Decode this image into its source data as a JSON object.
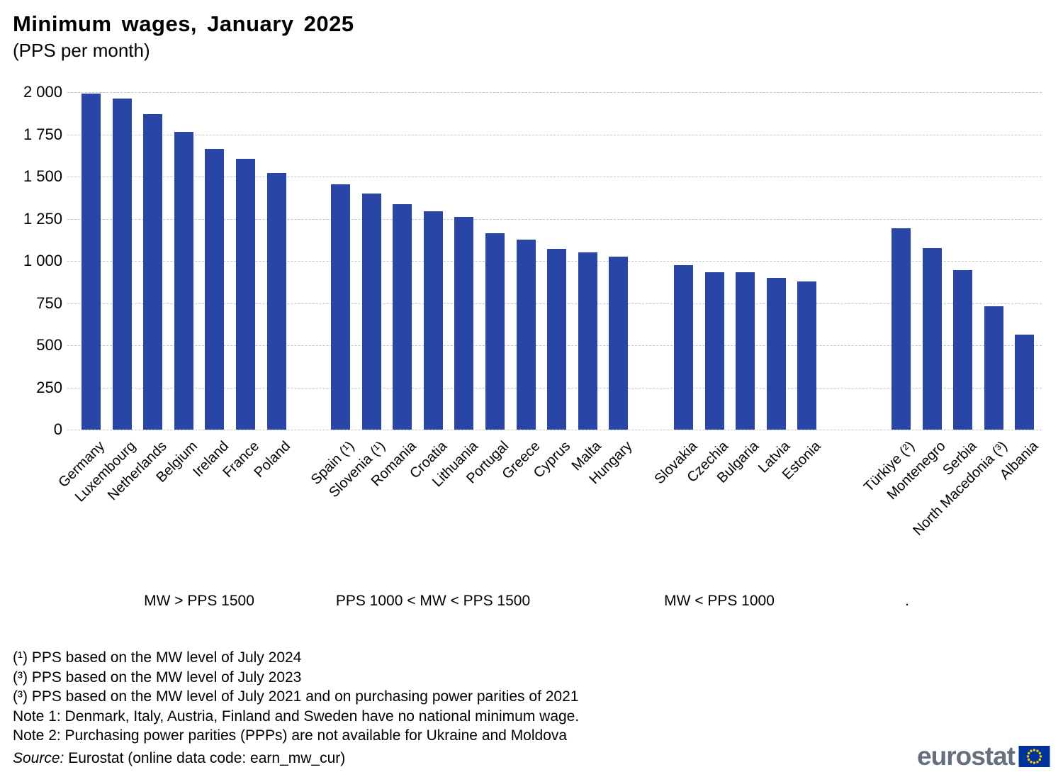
{
  "title": "Minimum wages, January 2025",
  "subtitle": "(PPS per month)",
  "chart_data": {
    "type": "bar",
    "title": "Minimum wages, January 2025",
    "subtitle": "(PPS per month)",
    "unit": "PPS per month",
    "ylim": [
      0,
      2000
    ],
    "ytick_step": 250,
    "ytick_labels": [
      "0",
      "250",
      "500",
      "750",
      "1 000",
      "1 250",
      "1 500",
      "1 750",
      "2 000"
    ],
    "grid": "dashed horizontal",
    "bar_color": "#2945a6",
    "gridline_color": "#c4c4c4",
    "groups": [
      {
        "label": "MW > PPS 1500",
        "categories": [
          "Germany",
          "Luxembourg",
          "Netherlands",
          "Belgium",
          "Ireland",
          "France",
          "Poland"
        ],
        "values": [
          1992,
          1964,
          1870,
          1764,
          1662,
          1606,
          1523
        ]
      },
      {
        "label": "PPS 1000 < MW < PPS 1500",
        "categories": [
          "Spain (¹)",
          "Slovenia (¹)",
          "Romania",
          "Croatia",
          "Lithuania",
          "Portugal",
          "Greece",
          "Cyprus",
          "Malta",
          "Hungary"
        ],
        "values": [
          1452,
          1400,
          1338,
          1295,
          1262,
          1165,
          1126,
          1073,
          1050,
          1024
        ]
      },
      {
        "label": "MW < PPS 1000",
        "categories": [
          "Slovakia",
          "Czechia",
          "Bulgaria",
          "Latvia",
          "Estonia"
        ],
        "values": [
          973,
          934,
          932,
          901,
          878
        ]
      },
      {
        "label": ".",
        "categories": [
          "Türkiye (²)",
          "Montenegro",
          "Serbia",
          "North Macedonia (³)",
          "Albania"
        ],
        "values": [
          1193,
          1076,
          945,
          732,
          561
        ]
      }
    ]
  },
  "footnotes": [
    "(¹) PPS based on the MW level of July 2024",
    "(³) PPS based on the MW level of July 2023",
    "(³) PPS based on the MW level of July 2021 and on purchasing power parities of 2021",
    "Note 1: Denmark, Italy, Austria, Finland and Sweden have no national minimum wage.",
    "Note 2: Purchasing power parities (PPPs) are not available for Ukraine and Moldova"
  ],
  "source": {
    "prefix": "Source:",
    "text": " Eurostat (online data code: earn_mw_cur)"
  },
  "logo": {
    "text": "eurostat",
    "flag_bg": "#003399",
    "star_color": "#ffcc00"
  }
}
